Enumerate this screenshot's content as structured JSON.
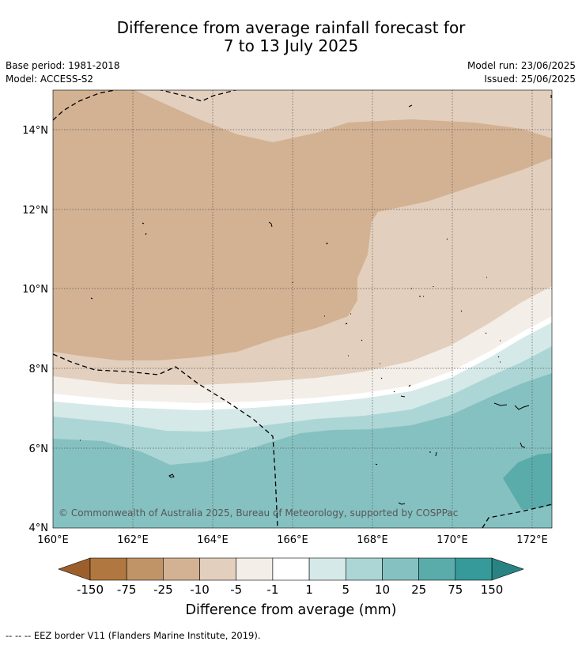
{
  "title": {
    "line1": "Difference from average rainfall forecast for",
    "line2": "7 to 13 July 2025"
  },
  "meta": {
    "base_period": "Base period: 1981-2018",
    "model": "Model: ACCESS-S2",
    "model_run": "Model run: 23/06/2025",
    "issued": "Issued: 25/06/2025"
  },
  "map": {
    "lon_range": [
      160,
      172.5
    ],
    "lat_range": [
      4,
      15
    ],
    "lat_ticks": [
      "4°N",
      "6°N",
      "8°N",
      "10°N",
      "12°N",
      "14°N"
    ],
    "lon_ticks": [
      "160°E",
      "162°E",
      "164°E",
      "166°E",
      "168°E",
      "170°E",
      "172°E"
    ],
    "copyright": "© Commonwealth of Australia 2025, Bureau of Meteorology, supported by COSPPac",
    "grid": true
  },
  "colorbar": {
    "ticks": [
      "-150",
      "-75",
      "-25",
      "-10",
      "-5",
      "-1",
      "1",
      "5",
      "10",
      "25",
      "75",
      "150"
    ],
    "colors": [
      "#9c5f2c",
      "#b07840",
      "#c19467",
      "#d3b293",
      "#e3cfbd",
      "#f3eee8",
      "#ffffff",
      "#d5e9e8",
      "#acd6d5",
      "#86c1c1",
      "#5aacab",
      "#36999a",
      "#2a8383"
    ],
    "label": "Difference from average (mm)"
  },
  "footer": "--  --  -- EEZ border V11 (Flanders Marine Institute, 2019)."
}
